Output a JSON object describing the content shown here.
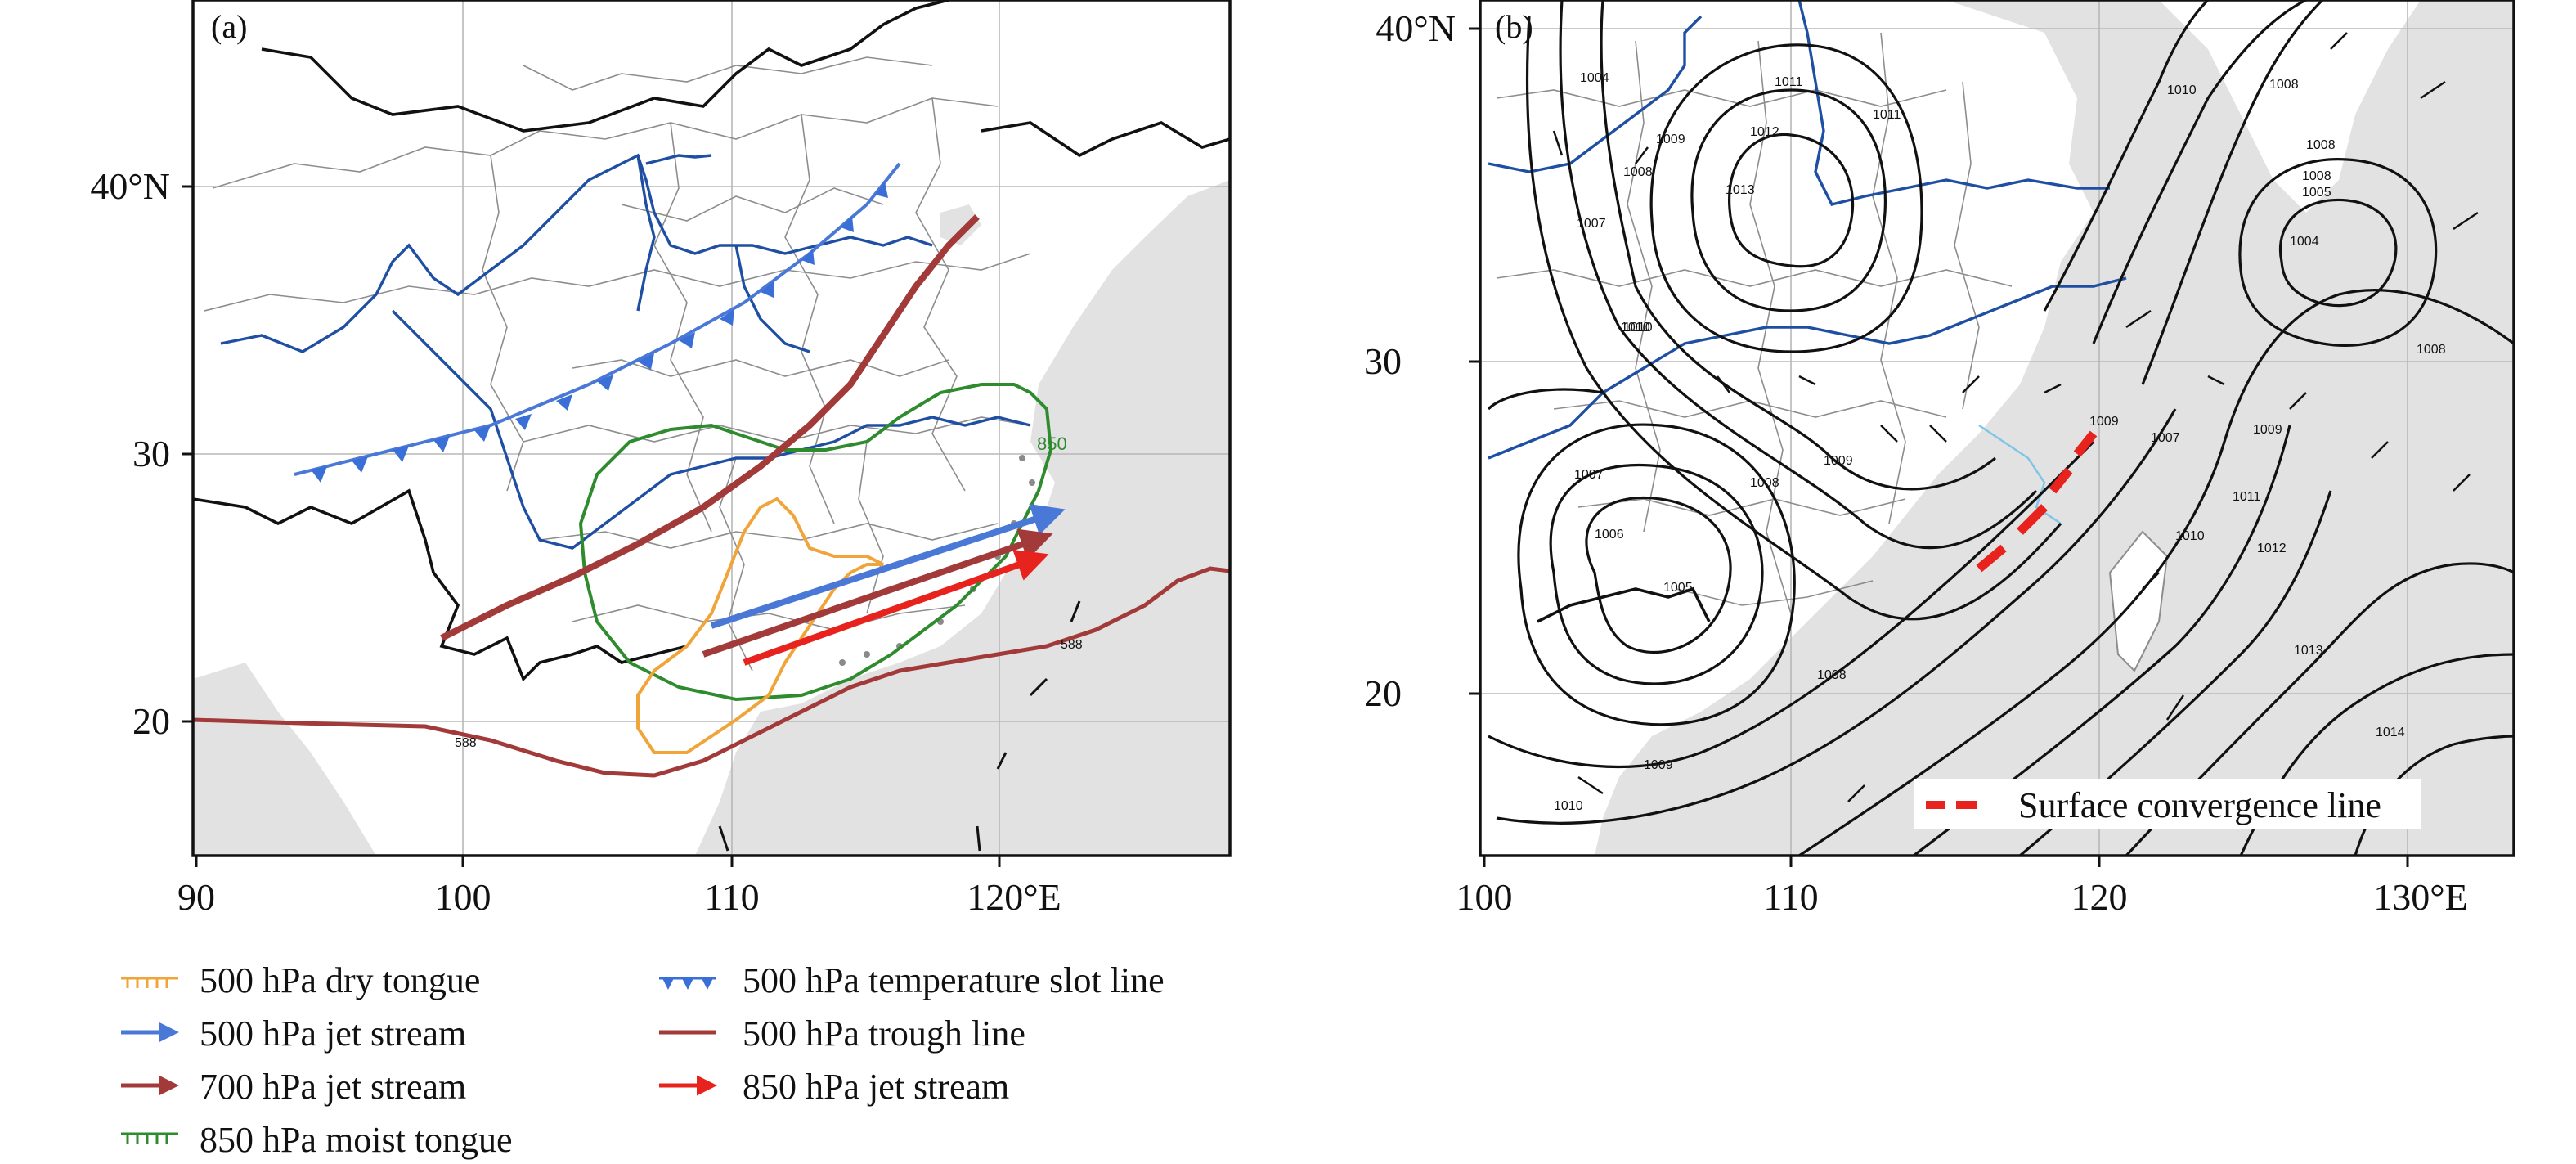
{
  "figure": {
    "panels": [
      {
        "label": "(a)",
        "lat_ticks": [
          "20",
          "30",
          "40°N"
        ],
        "lon_ticks": [
          "90",
          "100",
          "110",
          "120°E"
        ],
        "contour_labels": [
          "588",
          "588",
          "850"
        ]
      },
      {
        "label": "(b)",
        "lat_ticks": [
          "20",
          "30",
          "40°N"
        ],
        "lon_ticks": [
          "100",
          "110",
          "120",
          "130°E"
        ],
        "isobar_labels": [
          "1004",
          "1007",
          "1008",
          "1009",
          "1010",
          "1011",
          "1012",
          "1013",
          "1007",
          "1008",
          "1010",
          "1009",
          "1006",
          "1005",
          "1008",
          "1009",
          "1010",
          "1011",
          "1012",
          "1013",
          "1014",
          "1007",
          "1008",
          "1008",
          "1004",
          "1005",
          "1008",
          "1008",
          "1009",
          "1010",
          "1009",
          "1011",
          "1010"
        ],
        "inset_legend": "Surface convergence line"
      }
    ],
    "legend": [
      {
        "label": "500 hPa dry tongue",
        "icon": "orange-hatched-line-icon",
        "color": "#f0a53a"
      },
      {
        "label": "500 hPa jet stream",
        "icon": "blue-arrow-icon",
        "color": "#4a78d6"
      },
      {
        "label": "700 hPa jet stream",
        "icon": "darkred-arrow-icon",
        "color": "#a33a3a"
      },
      {
        "label": "850 hPa moist tongue",
        "icon": "green-hatched-line-icon",
        "color": "#2e8b2e"
      },
      {
        "label": "500 hPa temperature slot line",
        "icon": "blue-triangle-line-icon",
        "color": "#3a6fd8"
      },
      {
        "label": "500 hPa trough line",
        "icon": "darkred-line-icon",
        "color": "#a33a3a"
      },
      {
        "label": "850 hPa jet stream",
        "icon": "red-arrow-icon",
        "color": "#e8231e"
      }
    ]
  }
}
